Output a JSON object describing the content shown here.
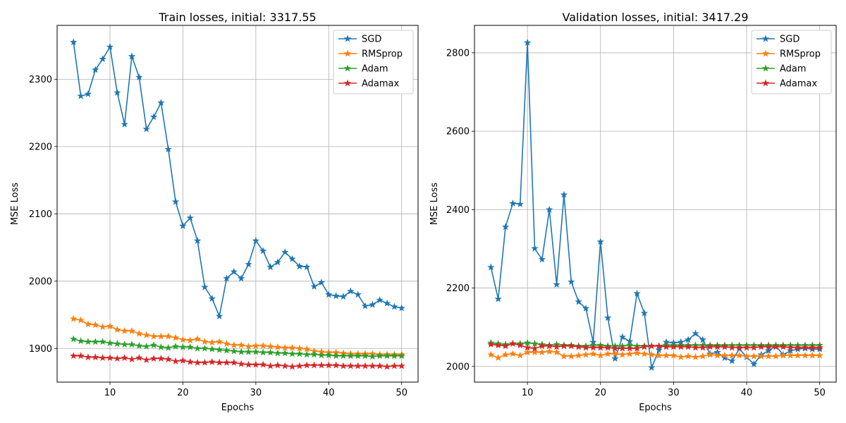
{
  "chart_data": [
    {
      "type": "line",
      "title": "Train losses, initial: 3317.55",
      "xlabel": "Epochs",
      "ylabel": "MSE Loss",
      "xlim": [
        2.75,
        52.25
      ],
      "ylim": [
        1850,
        2380
      ],
      "xticks": [
        10,
        20,
        30,
        40,
        50
      ],
      "yticks": [
        1900,
        2000,
        2100,
        2200,
        2300
      ],
      "grid": true,
      "legend": "top-right",
      "marker": "star",
      "x": [
        5,
        6,
        7,
        8,
        9,
        10,
        11,
        12,
        13,
        14,
        15,
        16,
        17,
        18,
        19,
        20,
        21,
        22,
        23,
        24,
        25,
        26,
        27,
        28,
        29,
        30,
        31,
        32,
        33,
        34,
        35,
        36,
        37,
        38,
        39,
        40,
        41,
        42,
        43,
        44,
        45,
        46,
        47,
        48,
        49,
        50
      ],
      "series": [
        {
          "name": "SGD",
          "color": "#1f77b4",
          "values": [
            2355,
            2275,
            2278,
            2314,
            2330,
            2348,
            2280,
            2233,
            2334,
            2303,
            2226,
            2244,
            2265,
            2196,
            2118,
            2082,
            2094,
            2060,
            1991,
            1974,
            1948,
            2004,
            2014,
            2004,
            2025,
            2060,
            2045,
            2021,
            2028,
            2043,
            2033,
            2022,
            2021,
            1992,
            1998,
            1980,
            1978,
            1977,
            1985,
            1980,
            1963,
            1965,
            1972,
            1967,
            1962,
            1960
          ]
        },
        {
          "name": "RMSprop",
          "color": "#ff7f0e",
          "values": [
            1944,
            1942,
            1936,
            1935,
            1932,
            1933,
            1928,
            1926,
            1926,
            1922,
            1920,
            1918,
            1918,
            1918,
            1916,
            1913,
            1912,
            1914,
            1910,
            1909,
            1910,
            1907,
            1905,
            1905,
            1903,
            1904,
            1904,
            1903,
            1902,
            1901,
            1901,
            1900,
            1899,
            1896,
            1895,
            1894,
            1894,
            1893,
            1892,
            1892,
            1892,
            1892,
            1891,
            1891,
            1891,
            1891
          ]
        },
        {
          "name": "Adam",
          "color": "#2ca02c",
          "values": [
            1914,
            1911,
            1910,
            1910,
            1910,
            1908,
            1907,
            1906,
            1906,
            1904,
            1903,
            1905,
            1902,
            1901,
            1903,
            1902,
            1902,
            1900,
            1900,
            1899,
            1898,
            1897,
            1896,
            1895,
            1895,
            1895,
            1894,
            1894,
            1893,
            1893,
            1892,
            1892,
            1891,
            1891,
            1890,
            1890,
            1889,
            1889,
            1889,
            1889,
            1889,
            1888,
            1889,
            1889,
            1889,
            1889
          ]
        },
        {
          "name": "Adamax",
          "color": "#d62728",
          "values": [
            1889,
            1889,
            1887,
            1887,
            1886,
            1886,
            1885,
            1886,
            1884,
            1886,
            1883,
            1885,
            1885,
            1884,
            1881,
            1882,
            1880,
            1879,
            1879,
            1880,
            1879,
            1879,
            1879,
            1877,
            1876,
            1876,
            1876,
            1874,
            1875,
            1874,
            1873,
            1874,
            1875,
            1875,
            1875,
            1875,
            1875,
            1874,
            1874,
            1874,
            1874,
            1874,
            1874,
            1873,
            1874,
            1874
          ]
        }
      ]
    },
    {
      "type": "line",
      "title": "Validation losses, initial: 3417.29",
      "xlabel": "Epochs",
      "ylabel": "MSE Loss",
      "xlim": [
        2.75,
        52.25
      ],
      "ylim": [
        1960,
        2870
      ],
      "xticks": [
        10,
        20,
        30,
        40,
        50
      ],
      "yticks": [
        2000,
        2200,
        2400,
        2600,
        2800
      ],
      "grid": true,
      "legend": "top-right",
      "marker": "star",
      "x": [
        5,
        6,
        7,
        8,
        9,
        10,
        11,
        12,
        13,
        14,
        15,
        16,
        17,
        18,
        19,
        20,
        21,
        22,
        23,
        24,
        25,
        26,
        27,
        28,
        29,
        30,
        31,
        32,
        33,
        34,
        35,
        36,
        37,
        38,
        39,
        40,
        41,
        42,
        43,
        44,
        45,
        46,
        47,
        48,
        49,
        50
      ],
      "series": [
        {
          "name": "SGD",
          "color": "#1f77b4",
          "values": [
            2253,
            2172,
            2356,
            2416,
            2414,
            2826,
            2301,
            2273,
            2400,
            2209,
            2438,
            2216,
            2165,
            2148,
            2062,
            2318,
            2124,
            2020,
            2075,
            2064,
            2186,
            2136,
            1997,
            2042,
            2062,
            2060,
            2062,
            2068,
            2084,
            2068,
            2032,
            2036,
            2022,
            2014,
            2045,
            2024,
            2006,
            2030,
            2040,
            2052,
            2030,
            2040,
            2044,
            2046,
            2044,
            2044
          ]
        },
        {
          "name": "RMSprop",
          "color": "#ff7f0e",
          "values": [
            2030,
            2022,
            2030,
            2032,
            2028,
            2036,
            2036,
            2036,
            2038,
            2036,
            2026,
            2026,
            2028,
            2030,
            2032,
            2028,
            2032,
            2032,
            2030,
            2032,
            2034,
            2032,
            2030,
            2028,
            2028,
            2028,
            2024,
            2026,
            2024,
            2026,
            2030,
            2028,
            2028,
            2028,
            2028,
            2026,
            2026,
            2026,
            2026,
            2026,
            2028,
            2028,
            2028,
            2028,
            2028,
            2028
          ]
        },
        {
          "name": "Adam",
          "color": "#2ca02c",
          "values": [
            2060,
            2058,
            2056,
            2058,
            2058,
            2060,
            2058,
            2056,
            2054,
            2056,
            2054,
            2054,
            2052,
            2052,
            2054,
            2054,
            2052,
            2052,
            2052,
            2054,
            2052,
            2052,
            2052,
            2052,
            2054,
            2054,
            2054,
            2054,
            2054,
            2054,
            2054,
            2054,
            2054,
            2054,
            2054,
            2054,
            2054,
            2054,
            2054,
            2054,
            2054,
            2054,
            2054,
            2054,
            2054,
            2054
          ]
        },
        {
          "name": "Adamax",
          "color": "#d62728",
          "values": [
            2056,
            2054,
            2052,
            2058,
            2054,
            2048,
            2046,
            2052,
            2052,
            2050,
            2052,
            2052,
            2050,
            2048,
            2048,
            2048,
            2048,
            2046,
            2046,
            2046,
            2046,
            2050,
            2052,
            2052,
            2050,
            2050,
            2050,
            2050,
            2048,
            2048,
            2050,
            2050,
            2050,
            2048,
            2048,
            2048,
            2048,
            2050,
            2050,
            2050,
            2050,
            2048,
            2048,
            2048,
            2048,
            2048
          ]
        }
      ]
    }
  ]
}
